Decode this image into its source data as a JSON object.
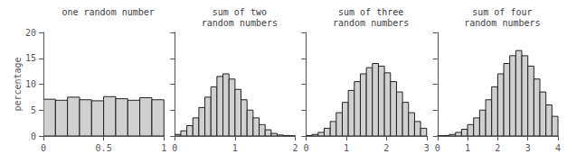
{
  "chart_data": [
    {
      "type": "histogram",
      "title": "one random number",
      "ylabel": "percentage",
      "bins": [
        0,
        0.1,
        0.2,
        0.3,
        0.4,
        0.5,
        0.6,
        0.7,
        0.8,
        0.9,
        1
      ],
      "values": [
        7.1,
        6.9,
        7.5,
        7.0,
        6.8,
        7.6,
        7.2,
        6.9,
        7.4,
        7.0
      ],
      "color": "#d0d0d0",
      "xlim": [
        0,
        1
      ],
      "xticks": [
        0,
        0.5,
        1
      ],
      "ylim": [
        0,
        20
      ],
      "yticks": [
        0,
        5,
        10,
        15,
        20
      ]
    },
    {
      "type": "histogram",
      "title": "sum of two\nrandom numbers",
      "bins": [
        0,
        0.1,
        0.2,
        0.3,
        0.4,
        0.5,
        0.6,
        0.7,
        0.8,
        0.9,
        1.0,
        1.1,
        1.2,
        1.3,
        1.4,
        1.5,
        1.6,
        1.7,
        1.8,
        1.9,
        2.0
      ],
      "values": [
        0.3,
        1.0,
        2.0,
        3.5,
        5.5,
        7.5,
        9.5,
        11.5,
        12.0,
        11.0,
        9.0,
        7.0,
        5.0,
        3.5,
        2.2,
        1.2,
        0.5,
        0.2,
        0.1,
        0.05
      ],
      "color": "#d0d0d0",
      "xlim": [
        0,
        2
      ],
      "xticks": [
        0,
        1,
        2
      ],
      "ylim": [
        0,
        20
      ],
      "yticks": [
        0,
        5,
        10,
        15,
        20
      ],
      "tick_labels": "x"
    },
    {
      "type": "histogram",
      "title": "sum of three\nrandom numbers",
      "bins": [
        0,
        0.15,
        0.3,
        0.45,
        0.6,
        0.75,
        0.9,
        1.05,
        1.2,
        1.35,
        1.5,
        1.65,
        1.8,
        1.95,
        2.1,
        2.25,
        2.4,
        2.55,
        2.7,
        2.85,
        3
      ],
      "values": [
        0.1,
        0.3,
        0.7,
        1.5,
        2.8,
        4.5,
        6.5,
        8.8,
        10.5,
        12.0,
        13.2,
        14.0,
        13.5,
        12.2,
        10.5,
        8.5,
        6.5,
        4.5,
        2.8,
        1.5
      ],
      "color": "#d0d0d0",
      "xlim": [
        0,
        3
      ],
      "xticks": [
        0,
        1,
        2,
        3
      ],
      "ylim": [
        0,
        20
      ],
      "yticks": [
        0,
        5,
        10,
        15,
        20
      ],
      "tick_labels": "x"
    },
    {
      "type": "histogram",
      "title": "sum of four\nrandom numbers",
      "bins": [
        0,
        0.2,
        0.4,
        0.6,
        0.8,
        1.0,
        1.2,
        1.4,
        1.6,
        1.8,
        2.0,
        2.2,
        2.4,
        2.6,
        2.8,
        3.0,
        3.2,
        3.4,
        3.6,
        3.8,
        4.0
      ],
      "values": [
        0.05,
        0.1,
        0.3,
        0.7,
        1.3,
        2.2,
        3.5,
        5.0,
        7.0,
        9.5,
        12.0,
        14.0,
        15.5,
        16.5,
        15.5,
        13.5,
        11.0,
        8.5,
        6.0,
        3.8
      ],
      "color": "#d0d0d0",
      "xlim": [
        0,
        4
      ],
      "xticks": [
        0,
        1,
        2,
        3,
        4
      ],
      "ylim": [
        0,
        20
      ],
      "yticks": [
        0,
        5,
        10,
        15,
        20
      ],
      "tick_labels": "x"
    }
  ]
}
